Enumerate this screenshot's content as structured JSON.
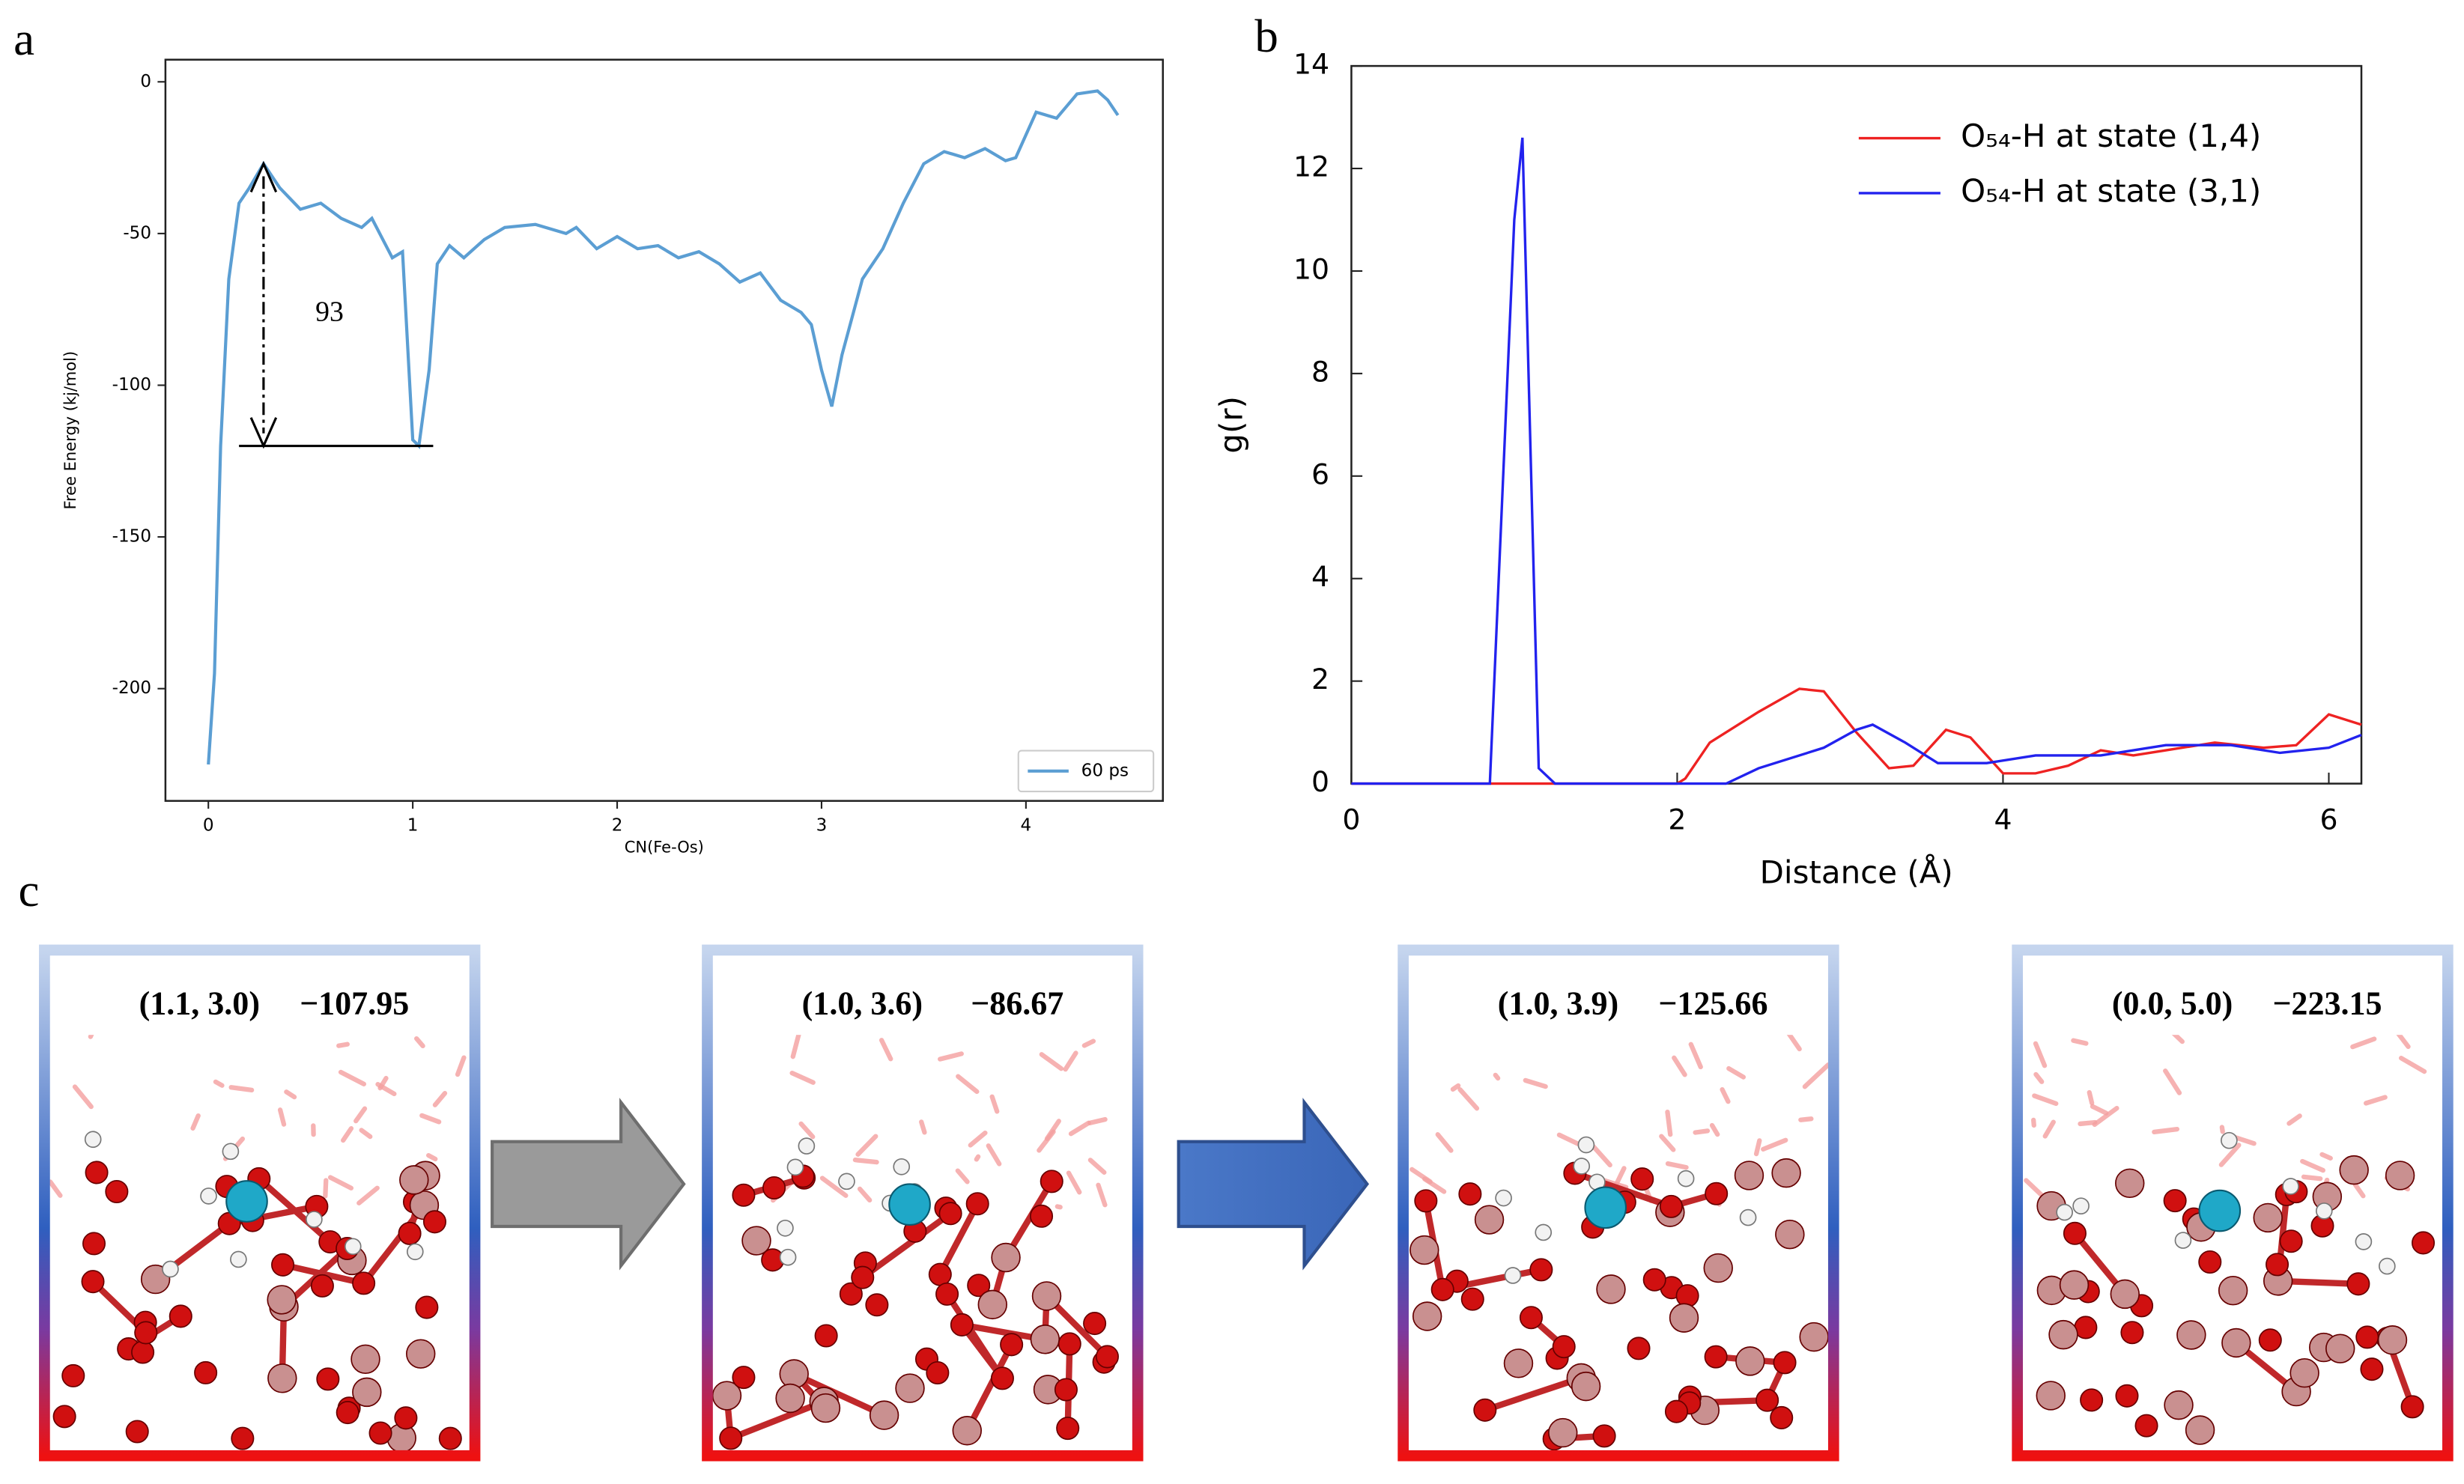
{
  "chart_data": [
    {
      "panel": "a",
      "type": "line",
      "xlabel": "CN(Fe-Os)",
      "ylabel": "Free Energy (kj/mol)",
      "xlim": [
        -0.21,
        4.67
      ],
      "ylim": [
        -237,
        7.3
      ],
      "xticks": [
        0,
        1,
        2,
        3,
        4
      ],
      "yticks": [
        0,
        -50,
        -100,
        -150,
        -200
      ],
      "annotation": "93",
      "legend_position": "lower right",
      "series": [
        {
          "name": "60 ps",
          "color": "#5b9ed3",
          "x": [
            0,
            0.03,
            0.06,
            0.1,
            0.15,
            0.2,
            0.27,
            0.35,
            0.45,
            0.55,
            0.65,
            0.75,
            0.8,
            0.9,
            0.95,
            1.0,
            1.03,
            1.08,
            1.12,
            1.18,
            1.25,
            1.35,
            1.45,
            1.6,
            1.75,
            1.8,
            1.9,
            2.0,
            2.1,
            2.2,
            2.3,
            2.4,
            2.5,
            2.6,
            2.7,
            2.8,
            2.9,
            2.95,
            3.0,
            3.05,
            3.1,
            3.2,
            3.3,
            3.4,
            3.5,
            3.6,
            3.7,
            3.8,
            3.9,
            3.95,
            4.05,
            4.15,
            4.2,
            4.25,
            4.35,
            4.4,
            4.45
          ],
          "values": [
            -225,
            -195,
            -120,
            -65,
            -40,
            -35,
            -27,
            -35,
            -42,
            -40,
            -45,
            -48,
            -45,
            -58,
            -56,
            -118,
            -120,
            -95,
            -60,
            -54,
            -58,
            -52,
            -48,
            -47,
            -50,
            -48,
            -55,
            -51,
            -55,
            -54,
            -58,
            -56,
            -60,
            -66,
            -63,
            -72,
            -76,
            -80,
            -95,
            -107,
            -90,
            -65,
            -55,
            -40,
            -27,
            -23,
            -25,
            -22,
            -26,
            -25,
            -10,
            -12,
            -8,
            -4,
            -3,
            -6,
            -11
          ]
        }
      ]
    },
    {
      "panel": "b",
      "type": "line",
      "xlabel": "Distance (Å)",
      "ylabel": "g(r)",
      "xlim": [
        0,
        6.2
      ],
      "ylim": [
        0,
        14
      ],
      "xticks": [
        0,
        2,
        4,
        6
      ],
      "yticks": [
        0,
        2,
        4,
        6,
        8,
        10,
        12,
        14
      ],
      "legend_position": "upper right",
      "series": [
        {
          "name": "O₅₄-H at state (1,4)",
          "color": "#ee2222",
          "x": [
            0,
            2.0,
            2.05,
            2.2,
            2.5,
            2.75,
            2.9,
            3.1,
            3.3,
            3.45,
            3.65,
            3.8,
            4.0,
            4.2,
            4.4,
            4.6,
            4.8,
            5.0,
            5.3,
            5.6,
            5.8,
            6.0,
            6.2
          ],
          "values": [
            0,
            0,
            0.1,
            0.8,
            1.4,
            1.85,
            1.8,
            1.0,
            0.3,
            0.35,
            1.05,
            0.9,
            0.2,
            0.2,
            0.35,
            0.65,
            0.55,
            0.65,
            0.8,
            0.7,
            0.75,
            1.35,
            1.15
          ]
        },
        {
          "name": "O₅₄-H at state (3,1)",
          "color": "#2222ee",
          "x": [
            0,
            0.85,
            1.0,
            1.05,
            1.15,
            1.25,
            2.3,
            2.5,
            2.9,
            3.1,
            3.2,
            3.4,
            3.6,
            3.9,
            4.2,
            4.6,
            5.0,
            5.4,
            5.7,
            6.0,
            6.2
          ],
          "values": [
            0,
            0,
            11,
            12.6,
            0.3,
            0,
            0,
            0.3,
            0.7,
            1.05,
            1.15,
            0.8,
            0.4,
            0.4,
            0.55,
            0.55,
            0.75,
            0.75,
            0.6,
            0.7,
            0.95
          ]
        }
      ]
    }
  ],
  "panel_c": {
    "label": "c",
    "snapshots": [
      {
        "coords": "(1.1, 3.0)",
        "energy": "−107.95"
      },
      {
        "coords": "(1.0, 3.6)",
        "energy": "−86.67"
      },
      {
        "coords": "(1.0, 3.9)",
        "energy": "−125.66"
      },
      {
        "coords": "(0.0, 5.0)",
        "energy": "−223.15"
      }
    ]
  }
}
